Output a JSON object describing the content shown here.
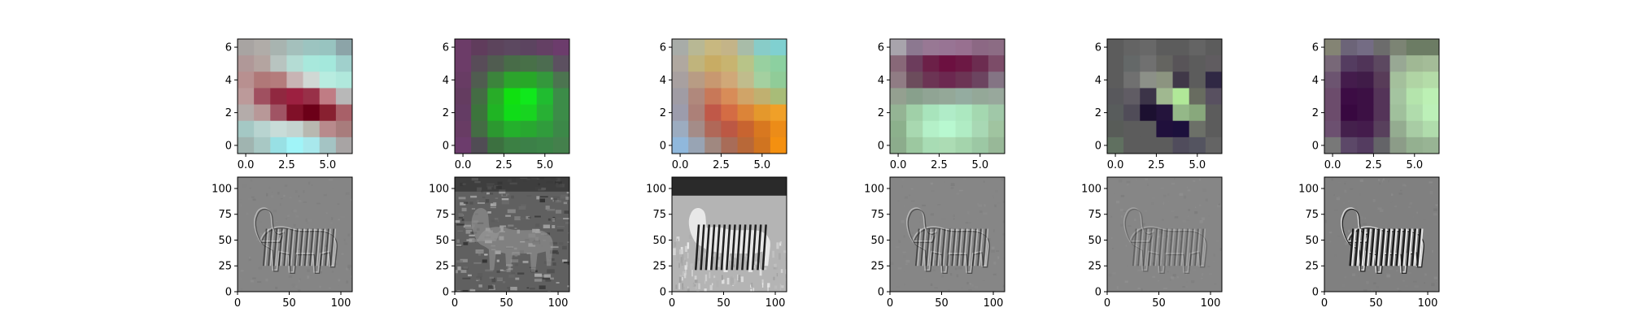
{
  "figure": {
    "rows": 2,
    "cols": 6,
    "description": "Top row: 7x7 RGB convolution filter visualizations; bottom row: grayscale feature-map responses of a zebra image to each filter"
  },
  "chart_data": [
    {
      "type": "heatmap",
      "panel": "filter-1",
      "grid_size": 7,
      "xlim": [
        -0.5,
        6.5
      ],
      "ylim": [
        6.5,
        -0.5
      ],
      "x_ticks": [
        "0.0",
        "2.5",
        "5.0"
      ],
      "y_ticks": [
        "0",
        "2",
        "4",
        "6"
      ],
      "colors": [
        [
          "#a8a4a2",
          "#b0aca8",
          "#a8b4b0",
          "#a4c0bc",
          "#9cc4c0",
          "#98c4c0",
          "#8ca4a8"
        ],
        [
          "#b09898",
          "#b4a4a0",
          "#b8c4c0",
          "#b4dcd4",
          "#a8e8dc",
          "#a4e8dc",
          "#a0d0cc"
        ],
        [
          "#b89090",
          "#b07878",
          "#b47c7c",
          "#c8b4b4",
          "#d0d8d4",
          "#b8ece0",
          "#b0e8dc"
        ],
        [
          "#bc9a9a",
          "#a05060",
          "#902840",
          "#9c2040",
          "#983048",
          "#c07c84",
          "#b8b8b8"
        ],
        [
          "#b4acaa",
          "#b89898",
          "#a05464",
          "#801028",
          "#6c0018",
          "#882030",
          "#a86068"
        ],
        [
          "#a4c8c4",
          "#b8d4d0",
          "#c8dcd8",
          "#c4d4d0",
          "#b8b8b0",
          "#b88a8c",
          "#a87c7c"
        ],
        [
          "#a0b4b0",
          "#a8c8c4",
          "#98e0e4",
          "#a0f4f8",
          "#a8e8ec",
          "#a4c4c4",
          "#a8a4a4"
        ]
      ],
      "feature_map": {
        "style": "edge-emboss",
        "base_gray": "#858585",
        "contrast": "low",
        "x_ticks": [
          "0",
          "50",
          "100"
        ],
        "y_ticks": [
          "0",
          "25",
          "50",
          "75",
          "100"
        ],
        "xlim": [
          0,
          111
        ],
        "ylim": [
          111,
          0
        ]
      }
    },
    {
      "type": "heatmap",
      "panel": "filter-2",
      "grid_size": 7,
      "xlim": [
        -0.5,
        6.5
      ],
      "ylim": [
        6.5,
        -0.5
      ],
      "x_ticks": [
        "0.0",
        "2.5",
        "5.0"
      ],
      "y_ticks": [
        "0",
        "2",
        "4",
        "6"
      ],
      "colors": [
        [
          "#6c3c68",
          "#603c5c",
          "#5c445c",
          "#5c4860",
          "#5c4460",
          "#644064",
          "#6c3c6c"
        ],
        [
          "#6c3c68",
          "#584c58",
          "#505c50",
          "#486c48",
          "#487048",
          "#4c6c50",
          "#5c5060"
        ],
        [
          "#683c64",
          "#505c50",
          "#3c843c",
          "#2ca42c",
          "#28a828",
          "#34983c",
          "#4c7450"
        ],
        [
          "#643c60",
          "#446c44",
          "#28ac28",
          "#10e010",
          "#10e81c",
          "#20bc30",
          "#3c8c48"
        ],
        [
          "#643c64",
          "#3c743c",
          "#20b424",
          "#10dc18",
          "#18d420",
          "#28b034",
          "#3c8c48"
        ],
        [
          "#683c64",
          "#446c44",
          "#2c9830",
          "#24b02c",
          "#28a830",
          "#309c3c",
          "#3c8848"
        ],
        [
          "#6c3c6c",
          "#504c54",
          "#3c7040",
          "#3c8044",
          "#3c8048",
          "#3c8448",
          "#44804c"
        ]
      ],
      "feature_map": {
        "style": "texture",
        "base_gray": "#606060",
        "contrast": "high",
        "x_ticks": [
          "0",
          "50",
          "100"
        ],
        "y_ticks": [
          "0",
          "25",
          "50",
          "75",
          "100"
        ],
        "xlim": [
          0,
          111
        ],
        "ylim": [
          111,
          0
        ]
      }
    },
    {
      "type": "heatmap",
      "panel": "filter-3",
      "grid_size": 7,
      "xlim": [
        -0.5,
        6.5
      ],
      "ylim": [
        6.5,
        -0.5
      ],
      "x_ticks": [
        "0.0",
        "2.5",
        "5.0"
      ],
      "y_ticks": [
        "0",
        "2",
        "4",
        "6"
      ],
      "colors": [
        [
          "#a8aca8",
          "#b8b894",
          "#c8b880",
          "#c4b488",
          "#a8bca8",
          "#88ccc8",
          "#80d0d0"
        ],
        [
          "#b0a8a0",
          "#c0b47c",
          "#c8ac64",
          "#c8b470",
          "#b8c488",
          "#98d0a0",
          "#8cd0a0"
        ],
        [
          "#a8a0a0",
          "#b89c84",
          "#c89870",
          "#d0a878",
          "#c0bc8c",
          "#a4d0a0",
          "#90cc98"
        ],
        [
          "#a09ca4",
          "#b0887c",
          "#c87858",
          "#d88c58",
          "#d0a468",
          "#c0b070",
          "#a8bc78"
        ],
        [
          "#9c9cac",
          "#ac8078",
          "#c05848",
          "#d46c44",
          "#dc8438",
          "#e4982c",
          "#f0a028"
        ],
        [
          "#9cacc0",
          "#a48c88",
          "#b06858",
          "#bc5844",
          "#c86430",
          "#d87820",
          "#ec8c18"
        ],
        [
          "#90b8dc",
          "#98a4b4",
          "#a08880",
          "#a86c58",
          "#b86838",
          "#d07420",
          "#f49010"
        ]
      ],
      "feature_map": {
        "style": "photo",
        "base_gray": "#a8a8a8",
        "contrast": "high",
        "x_ticks": [
          "0",
          "50",
          "100"
        ],
        "y_ticks": [
          "0",
          "25",
          "50",
          "75",
          "100"
        ],
        "xlim": [
          0,
          111
        ],
        "ylim": [
          111,
          0
        ]
      }
    },
    {
      "type": "heatmap",
      "panel": "filter-4",
      "grid_size": 7,
      "xlim": [
        -0.5,
        6.5
      ],
      "ylim": [
        6.5,
        -0.5
      ],
      "x_ticks": [
        "0.0",
        "2.5",
        "5.0"
      ],
      "y_ticks": [
        "0",
        "2",
        "4",
        "6"
      ],
      "colors": [
        [
          "#a8a4ac",
          "#8c7890",
          "#987894",
          "#987494",
          "#987090",
          "#8c6884",
          "#8c6c84"
        ],
        [
          "#886878",
          "#6c3c5c",
          "#6c2048",
          "#6c1040",
          "#6c1844",
          "#6c2c50",
          "#7c4c68"
        ],
        [
          "#907c84",
          "#6c4c5c",
          "#6c3454",
          "#6c2850",
          "#6c3454",
          "#6c4460",
          "#847484"
        ],
        [
          "#94a090",
          "#88a08c",
          "#90a494",
          "#94a898",
          "#94aca0",
          "#94a898",
          "#98a89c"
        ],
        [
          "#94b494",
          "#a0d0a8",
          "#a8e4bc",
          "#b0ecc8",
          "#ace8c0",
          "#a4d8b0",
          "#a0c8a8"
        ],
        [
          "#8cb08c",
          "#a8d8b0",
          "#b4f0c8",
          "#b8f8d0",
          "#b0ecc4",
          "#a8d8b4",
          "#a0c4a0"
        ],
        [
          "#8cac8c",
          "#9cc8a0",
          "#a8dcb4",
          "#acdcb4",
          "#a4d4ac",
          "#9cc8a4",
          "#98b898"
        ]
      ],
      "feature_map": {
        "style": "edge-emboss",
        "base_gray": "#868686",
        "contrast": "medium",
        "x_ticks": [
          "0",
          "50",
          "100"
        ],
        "y_ticks": [
          "0",
          "25",
          "50",
          "75",
          "100"
        ],
        "xlim": [
          0,
          111
        ],
        "ylim": [
          111,
          0
        ]
      }
    },
    {
      "type": "heatmap",
      "panel": "filter-5",
      "grid_size": 7,
      "xlim": [
        -0.5,
        6.5
      ],
      "ylim": [
        6.5,
        -0.5
      ],
      "x_ticks": [
        "0.0",
        "2.5",
        "5.0"
      ],
      "y_ticks": [
        "0",
        "2",
        "4",
        "6"
      ],
      "colors": [
        [
          "#5c5c5c",
          "#646464",
          "#686868",
          "#5c5c5c",
          "#5c5c5c",
          "#646464",
          "#5c5c5c"
        ],
        [
          "#5c5c5c",
          "#646868",
          "#707070",
          "#646460",
          "#585458",
          "#5c5c5c",
          "#605c60"
        ],
        [
          "#5c5c5c",
          "#707070",
          "#8c9088",
          "#8c9480",
          "#403848",
          "#5c5c5c",
          "#302844"
        ],
        [
          "#58585c",
          "#605c64",
          "#3c3448",
          "#a0b890",
          "#b0e898",
          "#686c60",
          "#585060"
        ],
        [
          "#585c5c",
          "#504c58",
          "#1c1030",
          "#24143c",
          "#94b888",
          "#88a87c",
          "#5c5c5c"
        ],
        [
          "#585c58",
          "#5c5c5c",
          "#5c5c5c",
          "#20103c",
          "#1c103c",
          "#6c7068",
          "#5c5c5c"
        ],
        [
          "#607060",
          "#5c5c5c",
          "#5c5c5c",
          "#5c5c5c",
          "#504c5c",
          "#545460",
          "#646464"
        ]
      ],
      "feature_map": {
        "style": "edge-faint",
        "base_gray": "#868686",
        "contrast": "low",
        "x_ticks": [
          "0",
          "50",
          "100"
        ],
        "y_ticks": [
          "0",
          "25",
          "50",
          "75",
          "100"
        ],
        "xlim": [
          0,
          111
        ],
        "ylim": [
          111,
          0
        ]
      }
    },
    {
      "type": "heatmap",
      "panel": "filter-6",
      "grid_size": 7,
      "xlim": [
        -0.5,
        6.5
      ],
      "ylim": [
        6.5,
        -0.5
      ],
      "x_ticks": [
        "0.0",
        "2.5",
        "5.0"
      ],
      "y_ticks": [
        "0",
        "2",
        "4",
        "6"
      ],
      "colors": [
        [
          "#848474",
          "#6c6478",
          "#746c84",
          "#6c6c6c",
          "#7c8474",
          "#6c7c64",
          "#6c7c64"
        ],
        [
          "#786878",
          "#543c60",
          "#503458",
          "#5c4860",
          "#98a894",
          "#a0b894",
          "#a4bc98"
        ],
        [
          "#6c5470",
          "#441c4c",
          "#401c48",
          "#583c58",
          "#a4c09c",
          "#b0d4a4",
          "#b4dca8"
        ],
        [
          "#6c4c6c",
          "#3c0c44",
          "#3c1044",
          "#543458",
          "#a4c4a0",
          "#b4e4ac",
          "#bcf0b4"
        ],
        [
          "#6c4c6c",
          "#380840",
          "#3c1044",
          "#543458",
          "#a0c09c",
          "#b0dcac",
          "#bcf0b8"
        ],
        [
          "#6c5070",
          "#44204c",
          "#441c4c",
          "#58405c",
          "#94ac90",
          "#a8cca4",
          "#b0dcac"
        ],
        [
          "#787878",
          "#5c4868",
          "#543c60",
          "#646468",
          "#8c9c88",
          "#94b090",
          "#98b494"
        ]
      ],
      "feature_map": {
        "style": "edge-strong",
        "base_gray": "#808080",
        "contrast": "high",
        "x_ticks": [
          "0",
          "50",
          "100"
        ],
        "y_ticks": [
          "0",
          "25",
          "50",
          "75",
          "100"
        ],
        "xlim": [
          0,
          111
        ],
        "ylim": [
          111,
          0
        ]
      }
    }
  ]
}
